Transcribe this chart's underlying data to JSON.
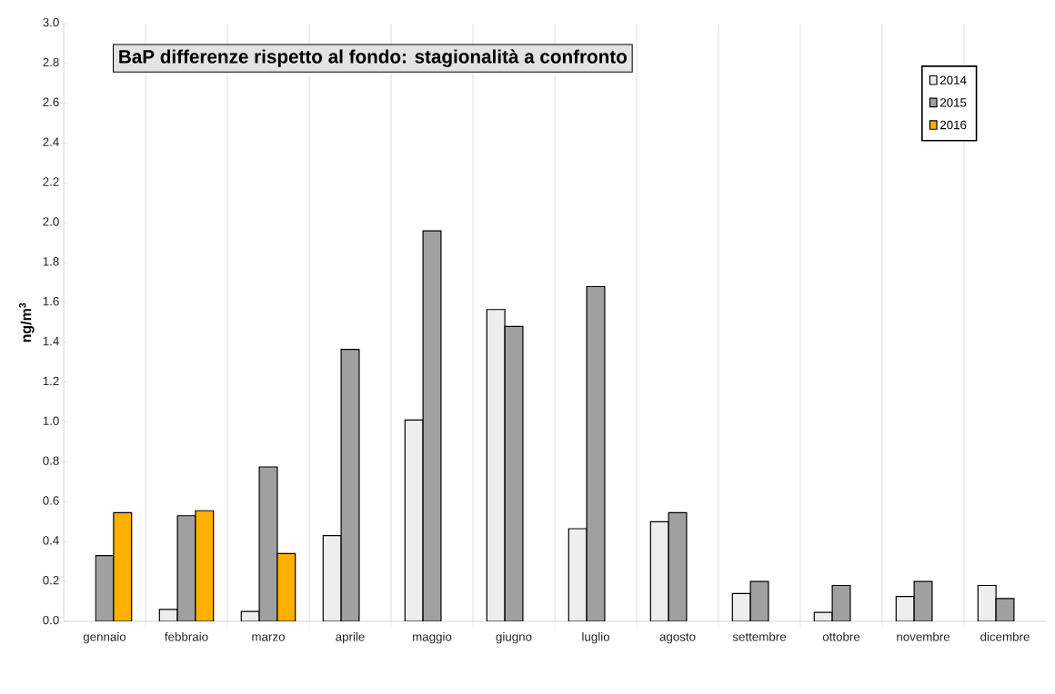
{
  "chart_data": {
    "type": "bar",
    "title": "BaP differenze rispetto al fondo: stagionalità a confronto",
    "ylabel": "ng/m$^{3}$",
    "categories": [
      "gennaio",
      "febbraio",
      "marzo",
      "aprile",
      "maggio",
      "giugno",
      "luglio",
      "agosto",
      "settembre",
      "ottobre",
      "novembre",
      "dicembre"
    ],
    "series": [
      {
        "name": "2014",
        "color": "#eeeeee",
        "values": [
          0,
          0.06,
          0.05,
          0.43,
          1.01,
          1.565,
          0.465,
          0.5,
          0.14,
          0.045,
          0.125,
          0.18
        ]
      },
      {
        "name": "2015",
        "color": "#a0a0a0",
        "values": [
          0.33,
          0.53,
          0.775,
          1.365,
          1.96,
          1.48,
          1.68,
          0.545,
          0.2,
          0.18,
          0.2,
          0.115
        ]
      },
      {
        "name": "2016",
        "color": "#ffb000",
        "values": [
          0.545,
          0.555,
          0.34,
          null,
          null,
          null,
          null,
          null,
          null,
          null,
          null,
          null
        ]
      }
    ],
    "ylim": [
      0,
      3.0
    ],
    "yticks": [
      {
        "value": 0,
        "label": "0.0"
      },
      {
        "value": 0.2,
        "label": "0.2"
      },
      {
        "value": 0.4,
        "label": "0.4"
      },
      {
        "value": 0.6,
        "label": "0.6"
      },
      {
        "value": 0.8,
        "label": "0.8"
      },
      {
        "value": 1.0,
        "label": "1.0"
      },
      {
        "value": 1.2,
        "label": "1.2"
      },
      {
        "value": 1.4,
        "label": "1.4"
      },
      {
        "value": 1.6,
        "label": "1.6"
      },
      {
        "value": 1.8,
        "label": "1.8"
      },
      {
        "value": 2.0,
        "label": "2.0"
      },
      {
        "value": 2.2,
        "label": "2.2"
      },
      {
        "value": 2.4,
        "label": "2.4"
      },
      {
        "value": 2.6,
        "label": "2.6"
      },
      {
        "value": 2.8,
        "label": "2.8"
      },
      {
        "value": 3.0,
        "label": "3.0"
      }
    ],
    "grid": "x",
    "legend": "top right"
  }
}
